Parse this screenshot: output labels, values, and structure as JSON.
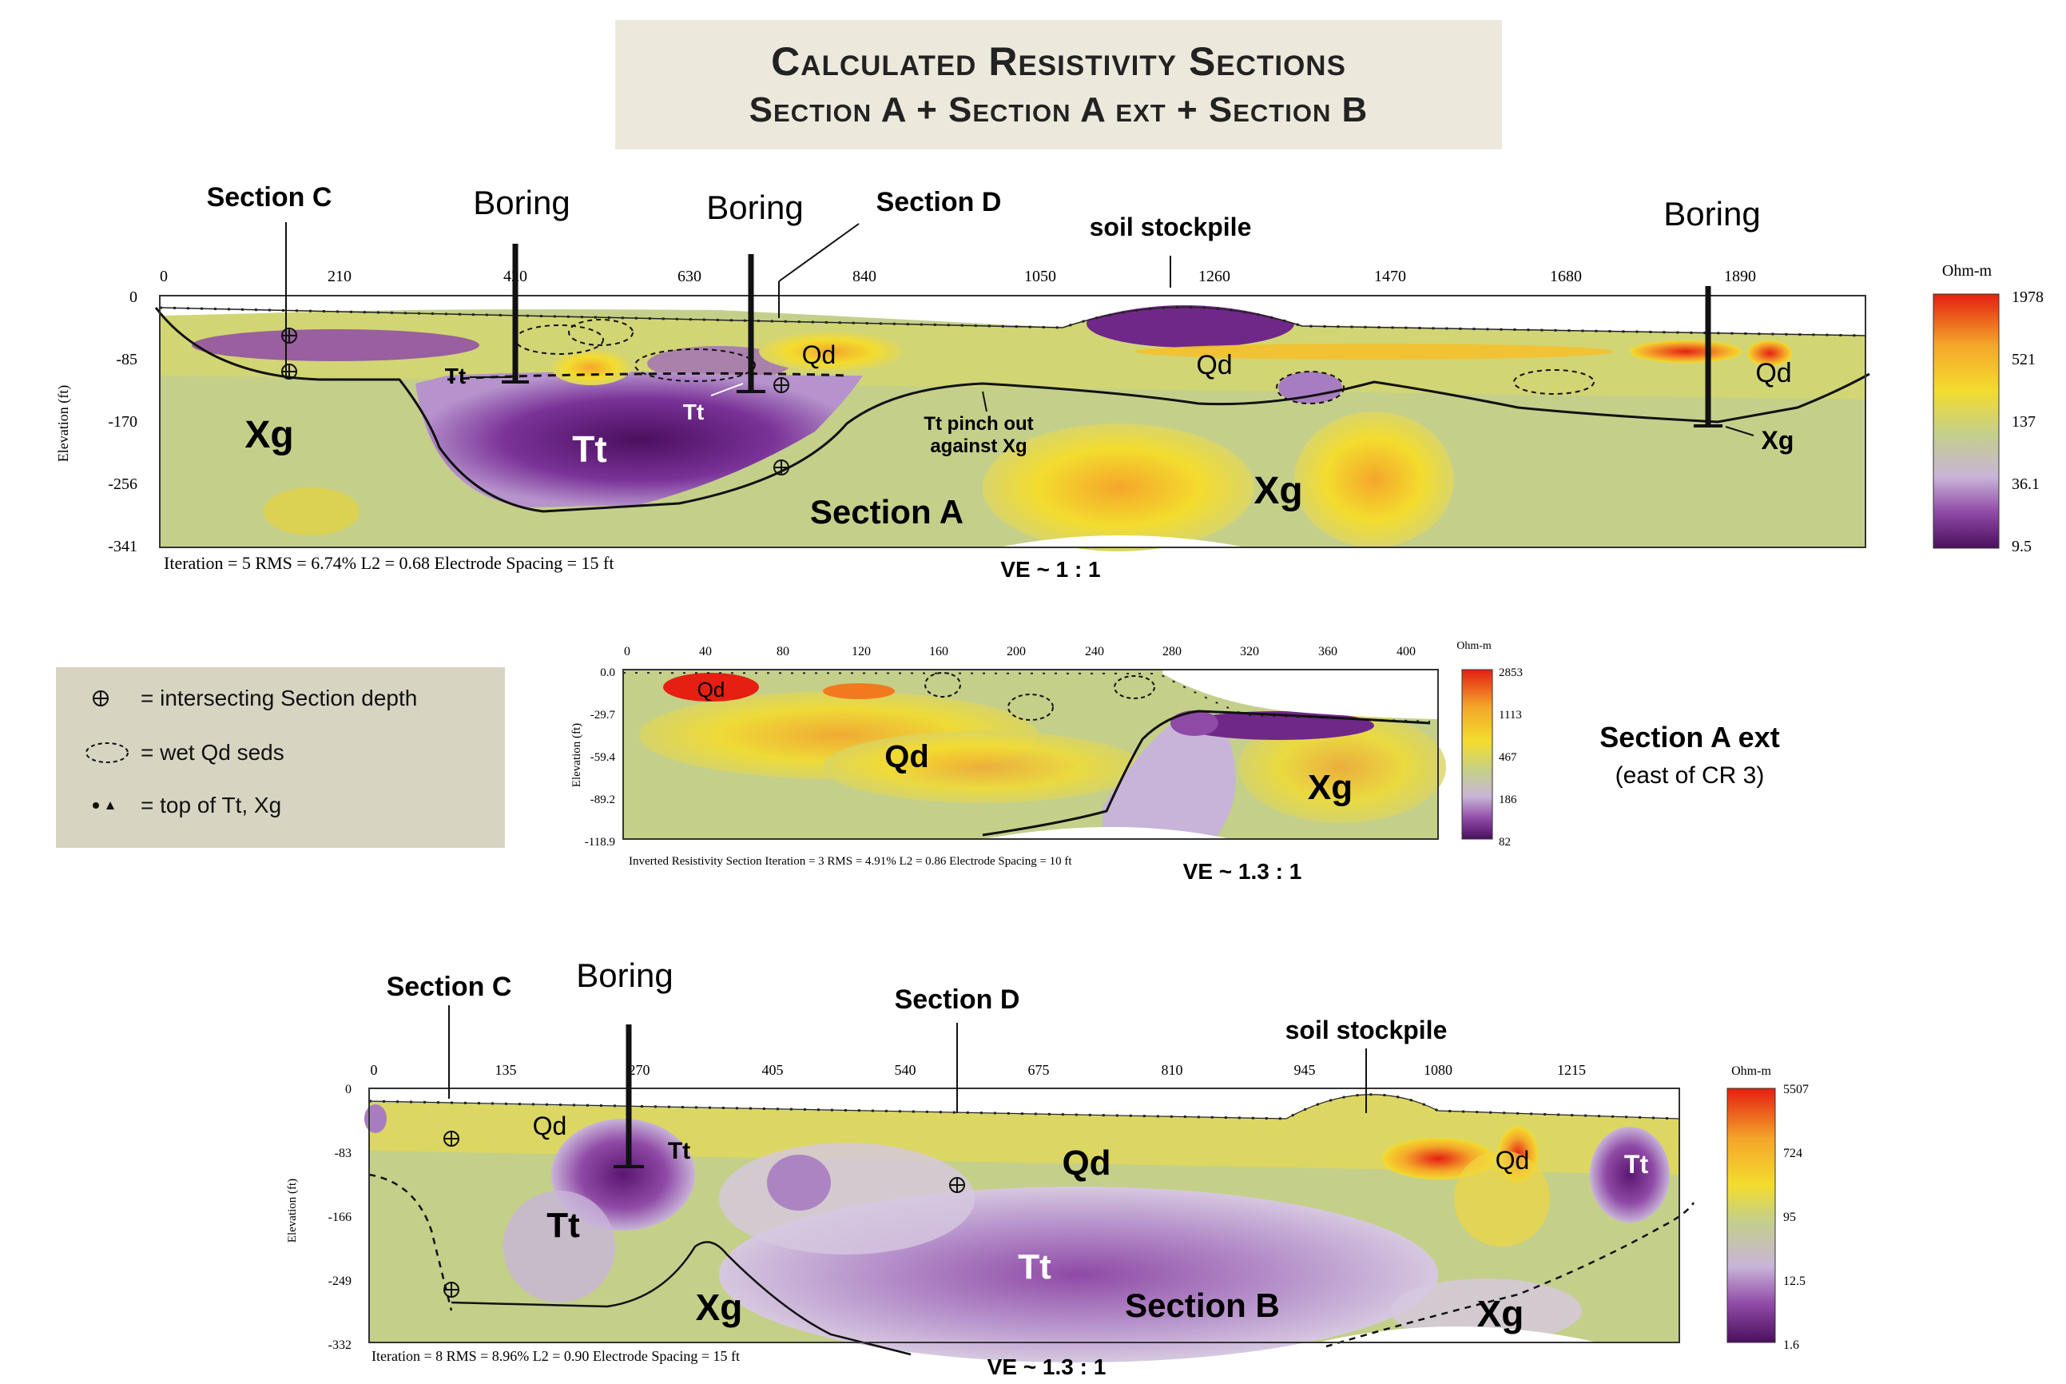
{
  "title": {
    "line1": "Calculated Resistivity Sections",
    "line2": "Section A + Section A ext + Section B"
  },
  "colors": {
    "purple_dark": "#5a1670",
    "purple": "#8f4aa6",
    "lavender": "#c8b4d8",
    "pale_green": "#c4cf8a",
    "olive": "#b6c153",
    "yellow": "#f3dc2e",
    "orange": "#f4a62a",
    "red": "#e51f12",
    "title_bg": "#ece9dc",
    "legend_bg": "#d7d4c2"
  },
  "section_a": {
    "x_ticks": [
      "0",
      "210",
      "420",
      "630",
      "840",
      "1050",
      "1260",
      "1470",
      "1680",
      "1890"
    ],
    "y_ticks": [
      "0",
      "-85",
      "-170",
      "-256",
      "-341"
    ],
    "y_label": "Elevation (ft)",
    "footer": "Iteration = 5    RMS = 6.74%    L2 = 0.68    Electrode Spacing = 15 ft",
    "ve": "VE ~ 1 : 1",
    "name": "Section A",
    "labels": {
      "section_c": "Section C",
      "boring1": "Boring",
      "boring2": "Boring",
      "boring3": "Boring",
      "section_d": "Section D",
      "stockpile": "soil stockpile",
      "xg_left": "Xg",
      "tt_main": "Tt",
      "tt_small1": "Tt",
      "tt_small2": "Tt",
      "qd1": "Qd",
      "qd2": "Qd",
      "qd3": "Qd",
      "xg_mid": "Xg",
      "xg_right": "Xg",
      "pinch1": "Tt pinch out",
      "pinch2": "against Xg"
    },
    "colorbar": {
      "unit": "Ohm-m",
      "ticks": [
        "1978",
        "521",
        "137",
        "36.1",
        "9.5"
      ]
    }
  },
  "section_a_ext": {
    "x_ticks": [
      "0",
      "40",
      "80",
      "120",
      "160",
      "200",
      "240",
      "280",
      "320",
      "360",
      "400"
    ],
    "y_ticks": [
      "0.0",
      "-29.7",
      "-59.4",
      "-89.2",
      "-118.9"
    ],
    "y_label": "Elevation (ft)",
    "footer": "Inverted Resistivity Section    Iteration = 3    RMS = 4.91%    L2 = 0.86    Electrode Spacing = 10 ft",
    "ve": "VE ~ 1.3 : 1",
    "name": "Section A ext",
    "subtitle": "(east of CR 3)",
    "labels": {
      "qd_top": "Qd",
      "qd_main": "Qd",
      "xg": "Xg"
    },
    "colorbar": {
      "unit": "Ohm-m",
      "ticks": [
        "2853",
        "1113",
        "467",
        "186",
        "82"
      ]
    }
  },
  "legend": {
    "item1": "= intersecting Section depth",
    "item2": "= wet Qd seds",
    "item3": "= top of Tt, Xg"
  },
  "section_b": {
    "x_ticks": [
      "0",
      "135",
      "270",
      "405",
      "540",
      "675",
      "810",
      "945",
      "1080",
      "1215"
    ],
    "y_ticks": [
      "0",
      "-83",
      "-166",
      "-249",
      "-332"
    ],
    "y_label": "Elevation (ft)",
    "footer": "Iteration = 8    RMS = 8.96%    L2 = 0.90    Electrode Spacing = 15 ft",
    "ve": "VE ~ 1.3 : 1",
    "name": "Section B",
    "labels": {
      "section_c": "Section C",
      "boring": "Boring",
      "section_d": "Section D",
      "stockpile": "soil stockpile",
      "qd1": "Qd",
      "qd2": "Qd",
      "qd3": "Qd",
      "tt_small": "Tt",
      "tt_left": "Tt",
      "tt_center": "Tt",
      "tt_right": "Tt",
      "xg_left": "Xg",
      "xg_right": "Xg"
    },
    "colorbar": {
      "unit": "Ohm-m",
      "ticks": [
        "5507",
        "724",
        "95",
        "12.5",
        "1.6"
      ]
    }
  }
}
